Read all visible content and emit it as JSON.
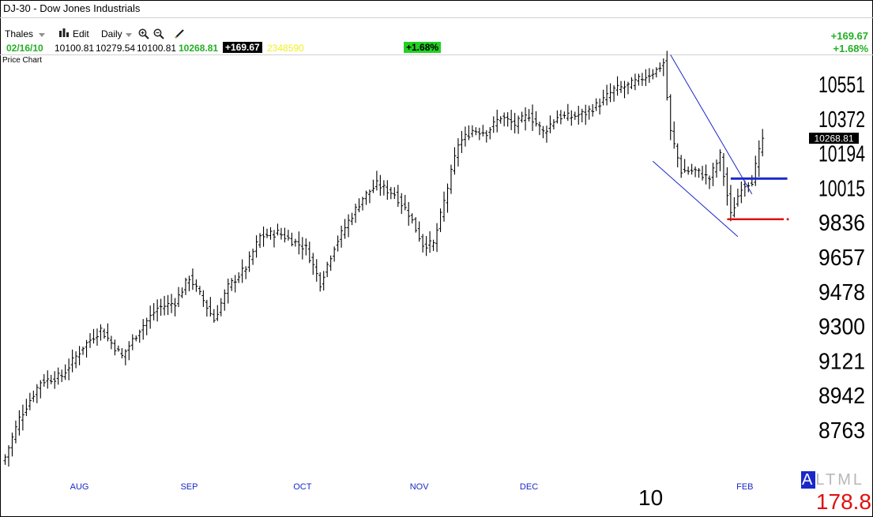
{
  "window": {
    "title": "DJ-30 - Dow Jones Industrials"
  },
  "toolbar": {
    "user": "Thales",
    "edit_label": "Edit",
    "period_label": "Daily"
  },
  "quote": {
    "date": "02/16/10",
    "open": "10100.81",
    "high": "10279.54",
    "low": "10100.81",
    "close": "10268.81",
    "change": "+169.67",
    "volume": "2348590",
    "pct_change": "+1.68%"
  },
  "summary": {
    "change": "+169.67",
    "pct_change": "+1.68%"
  },
  "panel": {
    "label": "Price Chart"
  },
  "colors": {
    "up": "#22b022",
    "volume": "#f0f020",
    "support_line": "#e01010",
    "resistance_line": "#1a28c8",
    "channel": "#1a28c8"
  },
  "footer": {
    "year_label": "10",
    "letters": [
      "A",
      "L",
      "T",
      "M",
      "L"
    ],
    "value": "178.8"
  },
  "chart_data": {
    "type": "ohlc",
    "title": "DJ-30 - Dow Jones Industrials",
    "yticks": [
      8763,
      8942,
      9121,
      9300,
      9478,
      9657,
      9836,
      10015,
      10194,
      10372,
      10551
    ],
    "ylim": [
      8500,
      10760
    ],
    "x_labels": [
      "AUG",
      "SEP",
      "OCT",
      "NOV",
      "DEC",
      "FEB"
    ],
    "last_price_label": "10268.81",
    "anchors": [
      [
        0,
        8620
      ],
      [
        4,
        8820
      ],
      [
        10,
        9010
      ],
      [
        16,
        9040
      ],
      [
        22,
        9190
      ],
      [
        27,
        9280
      ],
      [
        33,
        9140
      ],
      [
        38,
        9280
      ],
      [
        43,
        9390
      ],
      [
        48,
        9420
      ],
      [
        52,
        9550
      ],
      [
        56,
        9430
      ],
      [
        59,
        9330
      ],
      [
        63,
        9500
      ],
      [
        68,
        9600
      ],
      [
        72,
        9760
      ],
      [
        77,
        9780
      ],
      [
        81,
        9740
      ],
      [
        85,
        9700
      ],
      [
        89,
        9520
      ],
      [
        93,
        9710
      ],
      [
        97,
        9840
      ],
      [
        101,
        9960
      ],
      [
        105,
        10030
      ],
      [
        110,
        9980
      ],
      [
        114,
        9880
      ],
      [
        118,
        9720
      ],
      [
        121,
        9720
      ],
      [
        124,
        9940
      ],
      [
        128,
        10240
      ],
      [
        132,
        10310
      ],
      [
        136,
        10300
      ],
      [
        140,
        10380
      ],
      [
        144,
        10340
      ],
      [
        148,
        10390
      ],
      [
        152,
        10300
      ],
      [
        156,
        10380
      ],
      [
        160,
        10380
      ],
      [
        164,
        10400
      ],
      [
        168,
        10450
      ],
      [
        172,
        10520
      ],
      [
        176,
        10540
      ],
      [
        180,
        10580
      ],
      [
        184,
        10620
      ],
      [
        186,
        10660
      ],
      [
        188,
        10300
      ],
      [
        191,
        10100
      ],
      [
        195,
        10100
      ],
      [
        199,
        10060
      ],
      [
        202,
        10180
      ],
      [
        205,
        9870
      ],
      [
        208,
        10020
      ],
      [
        211,
        10050
      ],
      [
        214,
        10268.81
      ]
    ],
    "channel_upper": [
      [
        188,
        10700
      ],
      [
        211,
        9980
      ]
    ],
    "channel_lower": [
      [
        183,
        10150
      ],
      [
        207,
        9760
      ]
    ],
    "resistance": [
      [
        205,
        10060
      ],
      [
        221,
        10060
      ]
    ],
    "support": [
      [
        204,
        9850
      ],
      [
        220,
        9850
      ]
    ]
  }
}
